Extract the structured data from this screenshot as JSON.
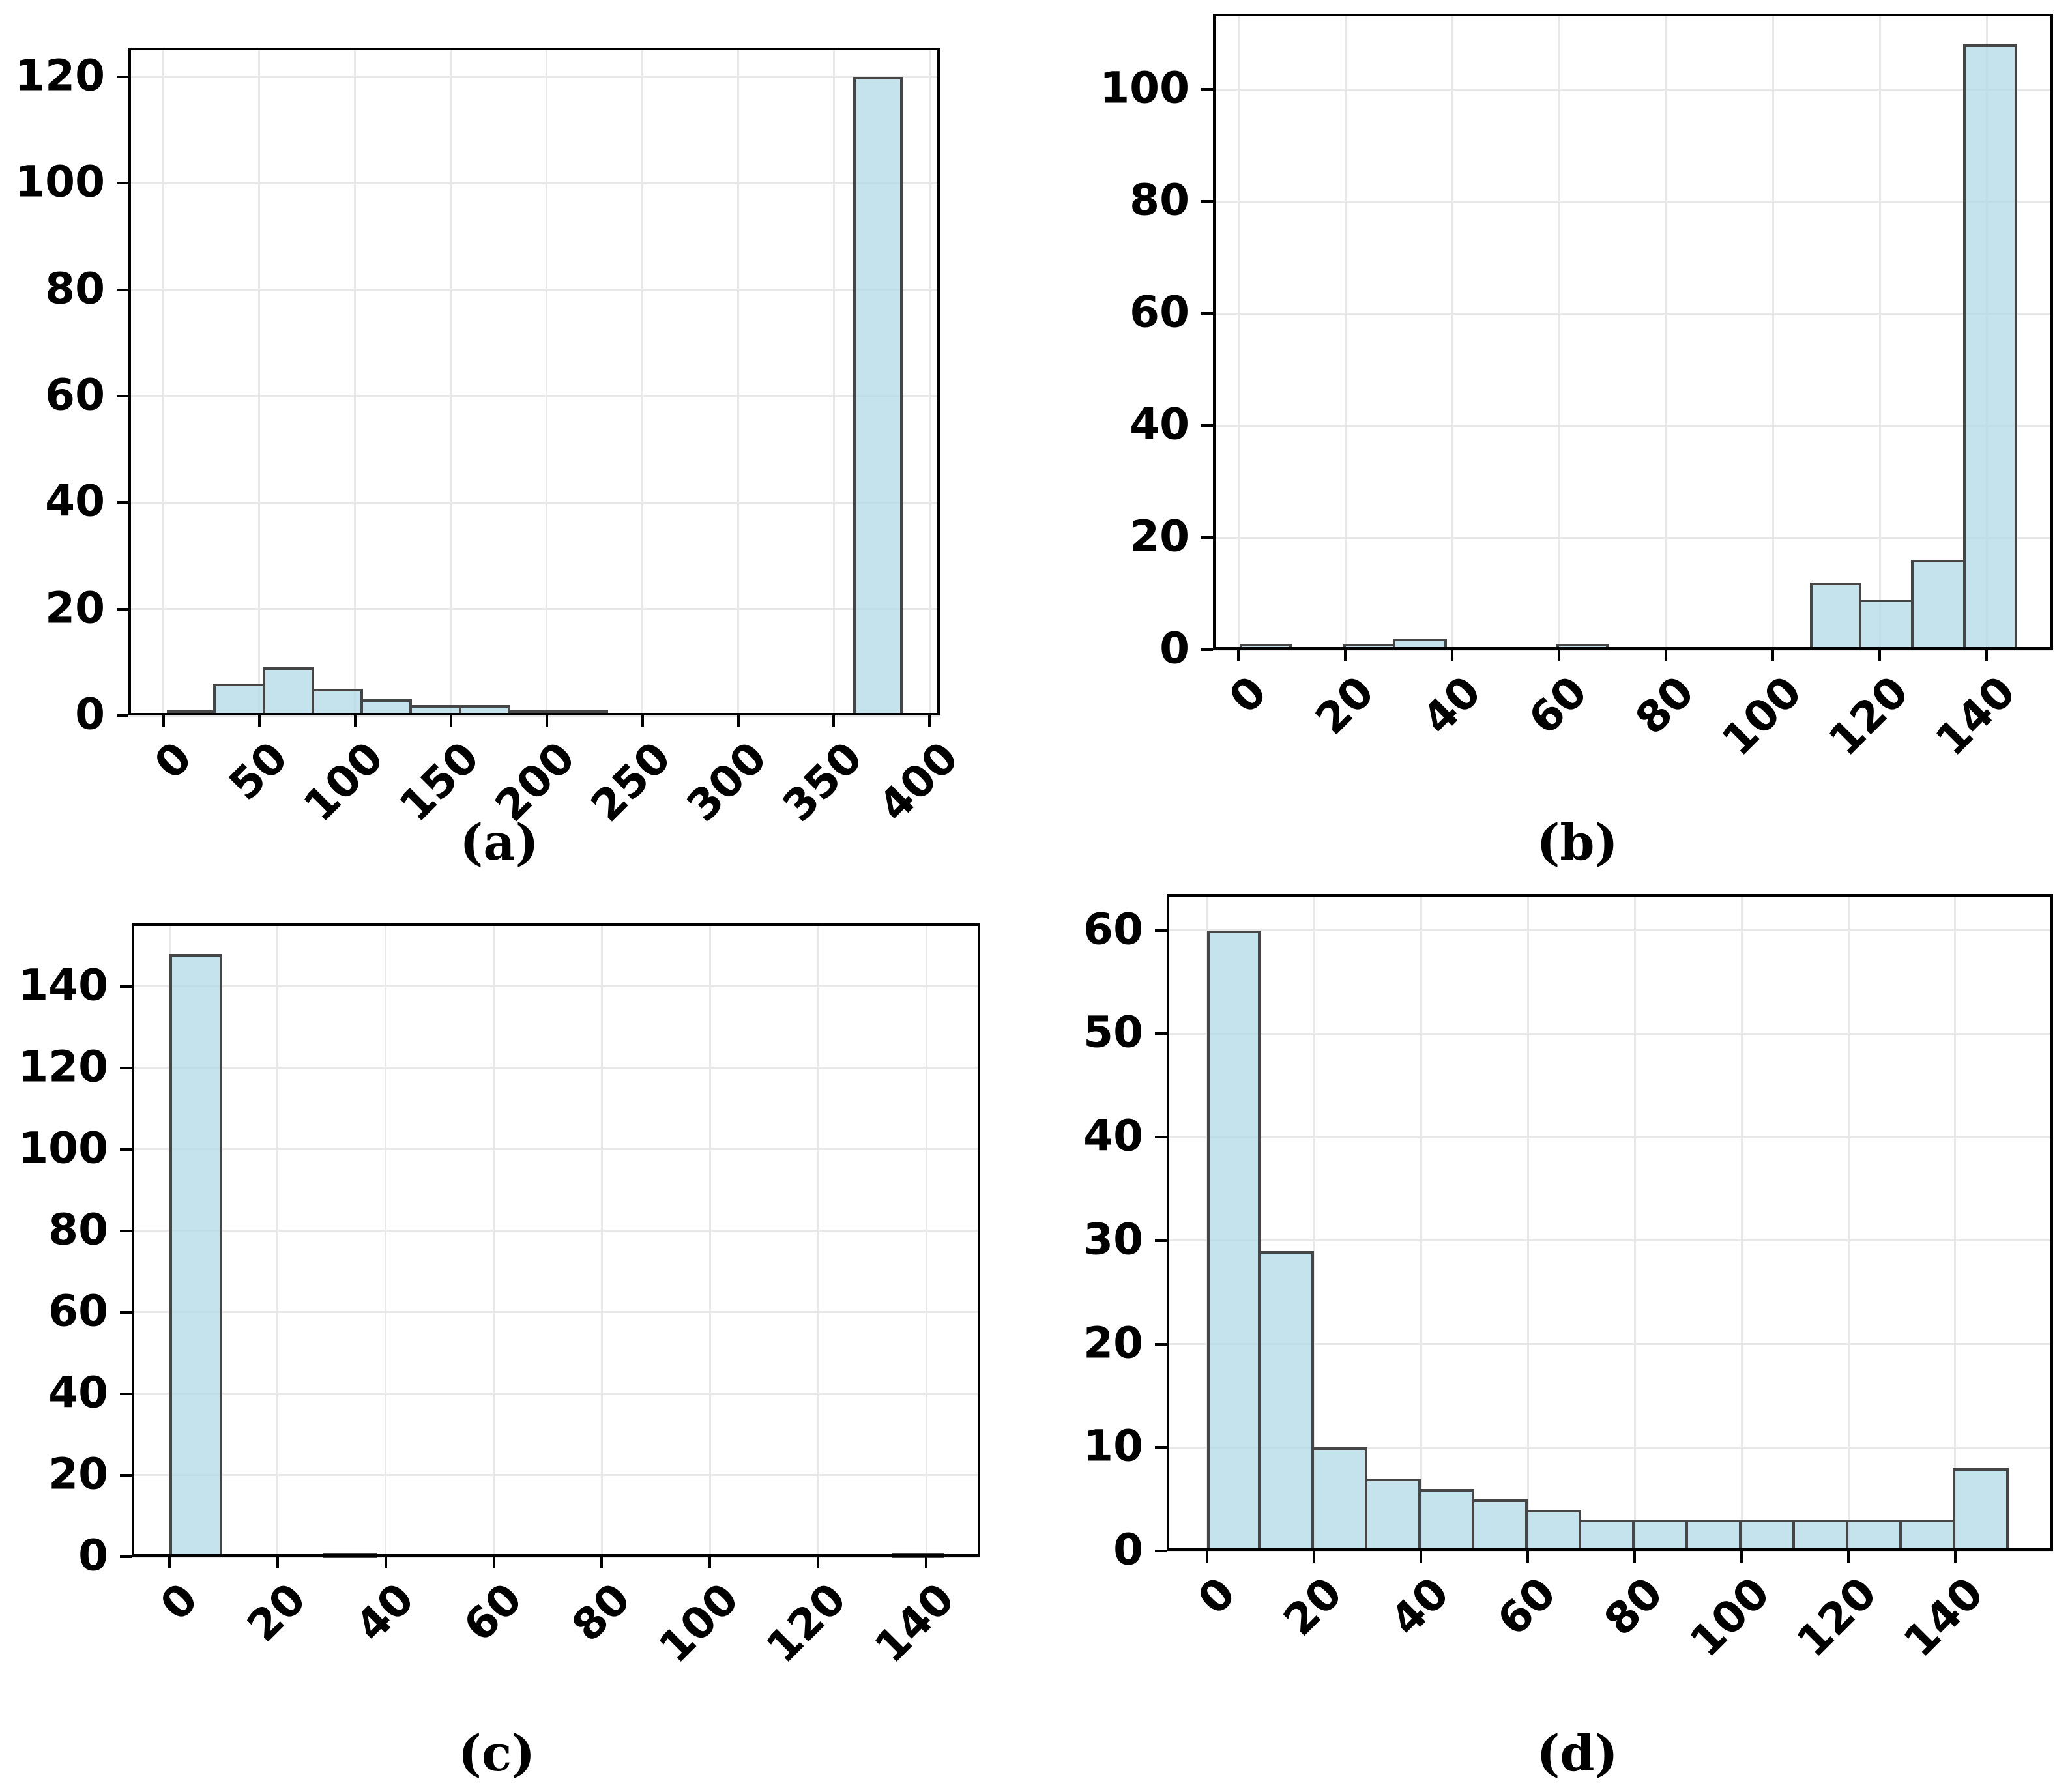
{
  "figure": {
    "background": "#ffffff",
    "bar_fill": "rgba(173,216,230,0.72)",
    "bar_edge": "#464646",
    "grid_color": "#e8e8e8",
    "axis_color": "#000000",
    "tick_label_color": "#000000"
  },
  "chart_data": [
    {
      "id": "a",
      "type": "bar",
      "kind": "histogram",
      "caption": "(a)",
      "title": "",
      "xlabel": "",
      "ylabel": "",
      "grid": true,
      "xlim": [
        -18.3,
        405.3
      ],
      "ylim": [
        0,
        125.5
      ],
      "xticks": [
        0,
        50,
        100,
        150,
        200,
        250,
        300,
        350,
        400
      ],
      "yticks": [
        0,
        20,
        40,
        60,
        80,
        100,
        120
      ],
      "bars": [
        {
          "x0": 1.8,
          "x1": 27.4,
          "count": 1
        },
        {
          "x0": 27.4,
          "x1": 53.0,
          "count": 6
        },
        {
          "x0": 53.0,
          "x1": 78.6,
          "count": 9
        },
        {
          "x0": 78.6,
          "x1": 104.2,
          "count": 5
        },
        {
          "x0": 104.2,
          "x1": 129.8,
          "count": 3
        },
        {
          "x0": 129.8,
          "x1": 155.4,
          "count": 2
        },
        {
          "x0": 155.4,
          "x1": 181.0,
          "count": 2
        },
        {
          "x0": 181.0,
          "x1": 206.6,
          "count": 1
        },
        {
          "x0": 206.6,
          "x1": 232.2,
          "count": 1
        },
        {
          "x0": 360.2,
          "x1": 385.8,
          "count": 120
        }
      ]
    },
    {
      "id": "b",
      "type": "bar",
      "kind": "histogram",
      "caption": "(b)",
      "title": "",
      "xlabel": "",
      "ylabel": "",
      "grid": true,
      "xlim": [
        -4.8,
        152.4
      ],
      "ylim": [
        0,
        113.5
      ],
      "xticks": [
        0,
        20,
        40,
        60,
        80,
        100,
        120,
        140
      ],
      "yticks": [
        0,
        20,
        40,
        60,
        80,
        100
      ],
      "bars": [
        {
          "x0": 0.2,
          "x1": 9.9,
          "count": 1
        },
        {
          "x0": 19.6,
          "x1": 29.3,
          "count": 1
        },
        {
          "x0": 29.3,
          "x1": 39.0,
          "count": 2
        },
        {
          "x0": 59.5,
          "x1": 69.2,
          "count": 1
        },
        {
          "x0": 106.9,
          "x1": 116.6,
          "count": 12
        },
        {
          "x0": 116.6,
          "x1": 126.3,
          "count": 9
        },
        {
          "x0": 126.3,
          "x1": 136.0,
          "count": 16
        },
        {
          "x0": 136.0,
          "x1": 145.7,
          "count": 108
        }
      ]
    },
    {
      "id": "c",
      "type": "bar",
      "kind": "histogram",
      "caption": "(c)",
      "title": "",
      "xlabel": "",
      "ylabel": "",
      "grid": true,
      "xlim": [
        -7.0,
        150.0
      ],
      "ylim": [
        0,
        155.5
      ],
      "xticks": [
        0,
        20,
        40,
        60,
        80,
        100,
        120,
        140
      ],
      "yticks": [
        0,
        20,
        40,
        60,
        80,
        100,
        120,
        140
      ],
      "bars": [
        {
          "x0": 0.0,
          "x1": 9.76,
          "count": 148
        },
        {
          "x0": 28.5,
          "x1": 38.3,
          "count": 1
        },
        {
          "x0": 133.6,
          "x1": 143.4,
          "count": 1
        }
      ]
    },
    {
      "id": "d",
      "type": "bar",
      "kind": "histogram",
      "caption": "(d)",
      "title": "",
      "xlabel": "",
      "ylabel": "",
      "grid": true,
      "xlim": [
        -7.6,
        158.3
      ],
      "ylim": [
        0,
        63.5
      ],
      "xticks": [
        0,
        20,
        40,
        60,
        80,
        100,
        120,
        140
      ],
      "yticks": [
        0,
        10,
        20,
        30,
        40,
        50,
        60
      ],
      "bars": [
        {
          "x0": 0,
          "x1": 10,
          "count": 60
        },
        {
          "x0": 10,
          "x1": 20,
          "count": 29
        },
        {
          "x0": 20,
          "x1": 30,
          "count": 10
        },
        {
          "x0": 30,
          "x1": 40,
          "count": 7
        },
        {
          "x0": 40,
          "x1": 50,
          "count": 6
        },
        {
          "x0": 50,
          "x1": 60,
          "count": 5
        },
        {
          "x0": 60,
          "x1": 70,
          "count": 4
        },
        {
          "x0": 70,
          "x1": 80,
          "count": 3
        },
        {
          "x0": 80,
          "x1": 90,
          "count": 3
        },
        {
          "x0": 90,
          "x1": 100,
          "count": 3
        },
        {
          "x0": 100,
          "x1": 110,
          "count": 3
        },
        {
          "x0": 110,
          "x1": 120,
          "count": 3
        },
        {
          "x0": 120,
          "x1": 130,
          "count": 3
        },
        {
          "x0": 130,
          "x1": 140,
          "count": 3
        },
        {
          "x0": 140,
          "x1": 150,
          "count": 8
        }
      ]
    }
  ]
}
